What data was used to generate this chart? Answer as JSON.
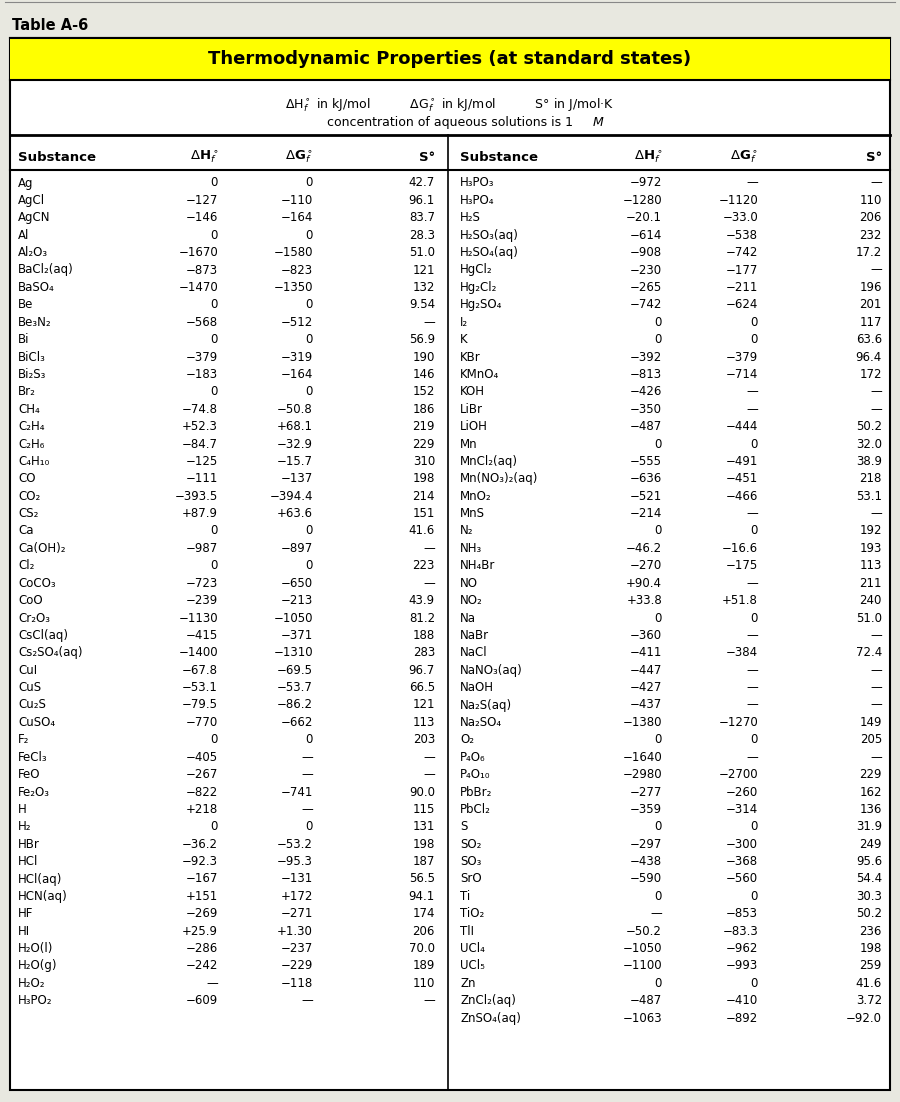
{
  "title": "Thermodynamic Properties (at standard states)",
  "table_label": "Table A-6",
  "left_data": [
    [
      "Ag",
      "0",
      "0",
      "42.7"
    ],
    [
      "AgCl",
      "−127",
      "−110",
      "96.1"
    ],
    [
      "AgCN",
      "−146",
      "−164",
      "83.7"
    ],
    [
      "Al",
      "0",
      "0",
      "28.3"
    ],
    [
      "Al₂O₃",
      "−1670",
      "−1580",
      "51.0"
    ],
    [
      "BaCl₂(aq)",
      "−873",
      "−823",
      "121"
    ],
    [
      "BaSO₄",
      "−1470",
      "−1350",
      "132"
    ],
    [
      "Be",
      "0",
      "0",
      "9.54"
    ],
    [
      "Be₃N₂",
      "−568",
      "−512",
      "—"
    ],
    [
      "Bi",
      "0",
      "0",
      "56.9"
    ],
    [
      "BiCl₃",
      "−379",
      "−319",
      "190"
    ],
    [
      "Bi₂S₃",
      "−183",
      "−164",
      "146"
    ],
    [
      "Br₂",
      "0",
      "0",
      "152"
    ],
    [
      "CH₄",
      "−74.8",
      "−50.8",
      "186"
    ],
    [
      "C₂H₄",
      "+52.3",
      "+68.1",
      "219"
    ],
    [
      "C₂H₆",
      "−84.7",
      "−32.9",
      "229"
    ],
    [
      "C₄H₁₀",
      "−125",
      "−15.7",
      "310"
    ],
    [
      "CO",
      "−111",
      "−137",
      "198"
    ],
    [
      "CO₂",
      "−393.5",
      "−394.4",
      "214"
    ],
    [
      "CS₂",
      "+87.9",
      "+63.6",
      "151"
    ],
    [
      "Ca",
      "0",
      "0",
      "41.6"
    ],
    [
      "Ca(OH)₂",
      "−987",
      "−897",
      "—"
    ],
    [
      "Cl₂",
      "0",
      "0",
      "223"
    ],
    [
      "CoCO₃",
      "−723",
      "−650",
      "—"
    ],
    [
      "CoO",
      "−239",
      "−213",
      "43.9"
    ],
    [
      "Cr₂O₃",
      "−1130",
      "−1050",
      "81.2"
    ],
    [
      "CsCl(aq)",
      "−415",
      "−371",
      "188"
    ],
    [
      "Cs₂SO₄(aq)",
      "−1400",
      "−1310",
      "283"
    ],
    [
      "CuI",
      "−67.8",
      "−69.5",
      "96.7"
    ],
    [
      "CuS",
      "−53.1",
      "−53.7",
      "66.5"
    ],
    [
      "Cu₂S",
      "−79.5",
      "−86.2",
      "121"
    ],
    [
      "CuSO₄",
      "−770",
      "−662",
      "113"
    ],
    [
      "F₂",
      "0",
      "0",
      "203"
    ],
    [
      "FeCl₃",
      "−405",
      "—",
      "—"
    ],
    [
      "FeO",
      "−267",
      "—",
      "—"
    ],
    [
      "Fe₂O₃",
      "−822",
      "−741",
      "90.0"
    ],
    [
      "H",
      "+218",
      "—",
      "115"
    ],
    [
      "H₂",
      "0",
      "0",
      "131"
    ],
    [
      "HBr",
      "−36.2",
      "−53.2",
      "198"
    ],
    [
      "HCl",
      "−92.3",
      "−95.3",
      "187"
    ],
    [
      "HCl(aq)",
      "−167",
      "−131",
      "56.5"
    ],
    [
      "HCN(aq)",
      "+151",
      "+172",
      "94.1"
    ],
    [
      "HF",
      "−269",
      "−271",
      "174"
    ],
    [
      "HI",
      "+25.9",
      "+1.30",
      "206"
    ],
    [
      "H₂O(l)",
      "−286",
      "−237",
      "70.0"
    ],
    [
      "H₂O(g)",
      "−242",
      "−229",
      "189"
    ],
    [
      "H₂O₂",
      "—",
      "−118",
      "110"
    ],
    [
      "H₃PO₂",
      "−609",
      "—",
      "—"
    ]
  ],
  "right_data": [
    [
      "H₃PO₃",
      "−972",
      "—",
      "—"
    ],
    [
      "H₃PO₄",
      "−1280",
      "−1120",
      "110"
    ],
    [
      "H₂S",
      "−20.1",
      "−33.0",
      "206"
    ],
    [
      "H₂SO₃(aq)",
      "−614",
      "−538",
      "232"
    ],
    [
      "H₂SO₄(aq)",
      "−908",
      "−742",
      "17.2"
    ],
    [
      "HgCl₂",
      "−230",
      "−177",
      "—"
    ],
    [
      "Hg₂Cl₂",
      "−265",
      "−211",
      "196"
    ],
    [
      "Hg₂SO₄",
      "−742",
      "−624",
      "201"
    ],
    [
      "I₂",
      "0",
      "0",
      "117"
    ],
    [
      "K",
      "0",
      "0",
      "63.6"
    ],
    [
      "KBr",
      "−392",
      "−379",
      "96.4"
    ],
    [
      "KMnO₄",
      "−813",
      "−714",
      "172"
    ],
    [
      "KOH",
      "−426",
      "—",
      "—"
    ],
    [
      "LiBr",
      "−350",
      "—",
      "—"
    ],
    [
      "LiOH",
      "−487",
      "−444",
      "50.2"
    ],
    [
      "Mn",
      "0",
      "0",
      "32.0"
    ],
    [
      "MnCl₂(aq)",
      "−555",
      "−491",
      "38.9"
    ],
    [
      "Mn(NO₃)₂(aq)",
      "−636",
      "−451",
      "218"
    ],
    [
      "MnO₂",
      "−521",
      "−466",
      "53.1"
    ],
    [
      "MnS",
      "−214",
      "—",
      "—"
    ],
    [
      "N₂",
      "0",
      "0",
      "192"
    ],
    [
      "NH₃",
      "−46.2",
      "−16.6",
      "193"
    ],
    [
      "NH₄Br",
      "−270",
      "−175",
      "113"
    ],
    [
      "NO",
      "+90.4",
      "—",
      "211"
    ],
    [
      "NO₂",
      "+33.8",
      "+51.8",
      "240"
    ],
    [
      "Na",
      "0",
      "0",
      "51.0"
    ],
    [
      "NaBr",
      "−360",
      "—",
      "—"
    ],
    [
      "NaCl",
      "−411",
      "−384",
      "72.4"
    ],
    [
      "NaNO₃(aq)",
      "−447",
      "—",
      "—"
    ],
    [
      "NaOH",
      "−427",
      "—",
      "—"
    ],
    [
      "Na₂S(aq)",
      "−437",
      "—",
      "—"
    ],
    [
      "Na₂SO₄",
      "−1380",
      "−1270",
      "149"
    ],
    [
      "O₂",
      "0",
      "0",
      "205"
    ],
    [
      "P₄O₆",
      "−1640",
      "—",
      "—"
    ],
    [
      "P₄O₁₀",
      "−2980",
      "−2700",
      "229"
    ],
    [
      "PbBr₂",
      "−277",
      "−260",
      "162"
    ],
    [
      "PbCl₂",
      "−359",
      "−314",
      "136"
    ],
    [
      "S",
      "0",
      "0",
      "31.9"
    ],
    [
      "SO₂",
      "−297",
      "−300",
      "249"
    ],
    [
      "SO₃",
      "−438",
      "−368",
      "95.6"
    ],
    [
      "SrO",
      "−590",
      "−560",
      "54.4"
    ],
    [
      "Ti",
      "0",
      "0",
      "30.3"
    ],
    [
      "TiO₂",
      "—",
      "−853",
      "50.2"
    ],
    [
      "TlI",
      "−50.2",
      "−83.3",
      "236"
    ],
    [
      "UCl₄",
      "−1050",
      "−962",
      "198"
    ],
    [
      "UCl₅",
      "−1100",
      "−993",
      "259"
    ],
    [
      "Zn",
      "0",
      "0",
      "41.6"
    ],
    [
      "ZnCl₂(aq)",
      "−487",
      "−410",
      "3.72"
    ],
    [
      "ZnSO₄(aq)",
      "−1063",
      "−892",
      "−92.0"
    ]
  ],
  "title_bg": "#FFFF00",
  "bg_color": "#E8E8E0"
}
